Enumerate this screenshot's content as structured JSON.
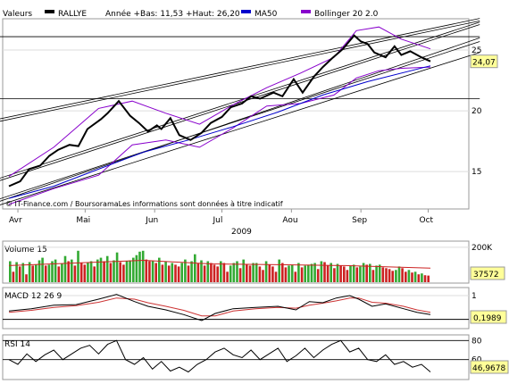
{
  "header": {
    "prefix": "Valeurs",
    "stock": "RALLYE",
    "year_range": "Année +Bas: 11,53 +Haut: 26,20",
    "ma_label": "MA50",
    "boll_label": "Bollinger 20 2.0"
  },
  "colors": {
    "price": "#000000",
    "ma50": "#0000cc",
    "bollinger": "#8800cc",
    "trendline": "#000000",
    "vol_up": "#33aa33",
    "vol_down": "#cc2222",
    "macd_signal": "#cc3333",
    "badge_bg": "#ffff99",
    "panel_border": "#999999"
  },
  "footer": {
    "copyright": "© IT-Finance.com / BoursoramaLes informations sont données à titre indicatif"
  },
  "chart_data": [
    {
      "type": "line",
      "name": "price",
      "ylim": [
        12,
        27.5
      ],
      "yticks": [
        {
          "v": 15,
          "label": "15"
        },
        {
          "v": 20,
          "label": "20"
        },
        {
          "v": 25,
          "label": "25"
        }
      ],
      "last_value_label": "24,07",
      "months": [
        "Avr",
        "Mai",
        "Jun",
        "Jul",
        "Aou",
        "Sep",
        "Oct"
      ],
      "year": "2009",
      "days": [
        0,
        5,
        9,
        14,
        18,
        22,
        27,
        31,
        35,
        41,
        44,
        49,
        54,
        58,
        62,
        66,
        68,
        72,
        76,
        81,
        86,
        90,
        95,
        99,
        104,
        108,
        112,
        118,
        122,
        127,
        131,
        136,
        140,
        144,
        149,
        154,
        157,
        160,
        163,
        168,
        172,
        175,
        179,
        184,
        188
      ],
      "values": [
        13.8,
        14.2,
        15.2,
        15.5,
        16.3,
        16.8,
        17.2,
        17.1,
        18.5,
        19.3,
        19.8,
        20.8,
        19.6,
        19.0,
        18.3,
        18.8,
        18.5,
        19.4,
        18.0,
        17.6,
        18.2,
        19.0,
        19.5,
        20.3,
        20.6,
        21.2,
        21.0,
        21.5,
        21.2,
        22.6,
        21.5,
        22.8,
        23.6,
        24.3,
        25.1,
        26.2,
        25.7,
        25.5,
        24.8,
        24.4,
        25.3,
        24.6,
        24.9,
        24.4,
        24.07
      ],
      "ma50": {
        "days": [
          0,
          20,
          40,
          60,
          80,
          100,
          120,
          140,
          160,
          188
        ],
        "values": [
          12.8,
          13.8,
          15.2,
          16.6,
          17.6,
          18.7,
          19.9,
          21.3,
          22.4,
          23.7
        ]
      },
      "bollinger_upper": {
        "days": [
          0,
          20,
          40,
          55,
          70,
          85,
          100,
          115,
          130,
          145,
          155,
          165,
          175,
          188
        ],
        "values": [
          14.6,
          17.0,
          20.2,
          20.8,
          19.8,
          18.9,
          20.5,
          21.9,
          23.1,
          24.4,
          26.6,
          26.9,
          25.9,
          25.1
        ],
        "lower": [
          12.3,
          13.6,
          14.7,
          17.2,
          17.6,
          17.0,
          18.6,
          20.4,
          20.6,
          21.3,
          22.7,
          23.3,
          23.5,
          23.6
        ]
      },
      "trendlines": [
        {
          "d1": -5,
          "v1": 14.4,
          "d2": 210,
          "v2": 27.3
        },
        {
          "d1": -5,
          "v1": 14.2,
          "d2": 210,
          "v2": 27.1
        },
        {
          "d1": -5,
          "v1": 19.3,
          "d2": 210,
          "v2": 27.6
        },
        {
          "d1": -5,
          "v1": 19.1,
          "d2": 210,
          "v2": 27.4
        },
        {
          "d1": -5,
          "v1": 12.2,
          "d2": 210,
          "v2": 24.8
        },
        {
          "d1": -5,
          "v1": 12.7,
          "d2": 210,
          "v2": 25.7
        },
        {
          "d1": -5,
          "v1": 12.5,
          "d2": 210,
          "v2": 26.0
        },
        {
          "d1": -5,
          "v1": 21.0,
          "d2": 210,
          "v2": 21.0
        },
        {
          "d1": -5,
          "v1": 26.1,
          "d2": 210,
          "v2": 26.1
        }
      ]
    },
    {
      "type": "bar",
      "name": "volume",
      "title": "Volume 15",
      "ylim": [
        0,
        230000
      ],
      "yticks": [
        {
          "v": 200000,
          "label": "200K"
        }
      ],
      "last_value_label": "37572",
      "values": [
        120000,
        60000,
        115000,
        90000,
        110000,
        45000,
        115000,
        95000,
        100000,
        125000,
        140000,
        95000,
        100000,
        120000,
        130000,
        90000,
        105000,
        150000,
        120000,
        130000,
        95000,
        180000,
        110000,
        100000,
        115000,
        120000,
        90000,
        130000,
        140000,
        120000,
        150000,
        110000,
        125000,
        170000,
        115000,
        100000,
        120000,
        125000,
        140000,
        155000,
        175000,
        180000,
        130000,
        120000,
        120000,
        110000,
        140000,
        100000,
        120000,
        95000,
        110000,
        100000,
        90000,
        110000,
        130000,
        95000,
        120000,
        160000,
        110000,
        125000,
        95000,
        120000,
        110000,
        100000,
        90000,
        120000,
        110000,
        60000,
        95000,
        110000,
        120000,
        80000,
        130000,
        105000,
        95000,
        110000,
        110000,
        90000,
        70000,
        120000,
        100000,
        90000,
        60000,
        130000,
        110000,
        85000,
        95000,
        100000,
        60000,
        110000,
        85000,
        95000,
        100000,
        105000,
        110000,
        75000,
        120000,
        115000,
        95000,
        110000,
        80000,
        105000,
        95000,
        90000,
        70000,
        95000,
        100000,
        85000,
        90000,
        110000,
        100000,
        105000,
        70000,
        95000,
        100000,
        85000,
        80000,
        75000,
        65000,
        70000,
        90000,
        80000,
        60000,
        70000,
        55000,
        60000,
        45000,
        50000,
        40000,
        37572
      ],
      "ma_days": [
        0,
        30,
        60,
        90,
        120,
        150,
        188
      ],
      "ma_values": [
        95000,
        110000,
        125000,
        105000,
        100000,
        95000,
        80000
      ]
    },
    {
      "type": "line",
      "name": "macd",
      "title": "MACD 12 26 9",
      "ylim": [
        -0.35,
        1.3
      ],
      "yticks": [
        {
          "v": 1,
          "label": "1"
        },
        {
          "v": 0,
          "label": "0"
        }
      ],
      "last_value_label": "0,1989",
      "days": [
        0,
        10,
        20,
        30,
        40,
        48,
        56,
        62,
        70,
        78,
        86,
        92,
        100,
        110,
        120,
        128,
        134,
        140,
        146,
        152,
        156,
        162,
        168,
        176,
        182,
        188
      ],
      "values": [
        0.35,
        0.45,
        0.6,
        0.62,
        0.85,
        1.05,
        0.75,
        0.55,
        0.4,
        0.2,
        -0.05,
        0.25,
        0.45,
        0.5,
        0.55,
        0.4,
        0.75,
        0.7,
        0.9,
        1.0,
        0.85,
        0.55,
        0.65,
        0.45,
        0.3,
        0.2
      ],
      "signal": [
        0.3,
        0.38,
        0.5,
        0.58,
        0.72,
        0.9,
        0.85,
        0.7,
        0.55,
        0.38,
        0.15,
        0.15,
        0.35,
        0.45,
        0.5,
        0.47,
        0.6,
        0.68,
        0.78,
        0.9,
        0.9,
        0.72,
        0.68,
        0.55,
        0.4,
        0.3
      ]
    },
    {
      "type": "line",
      "name": "rsi",
      "title": "RSI 14",
      "ylim": [
        40,
        85
      ],
      "yticks": [
        {
          "v": 80,
          "label": "80"
        },
        {
          "v": 60,
          "label": "60"
        }
      ],
      "last_value_label": "46,9678",
      "days": [
        0,
        4,
        8,
        12,
        16,
        20,
        24,
        28,
        32,
        36,
        40,
        44,
        48,
        52,
        56,
        60,
        64,
        68,
        72,
        76,
        80,
        84,
        88,
        92,
        96,
        100,
        104,
        108,
        112,
        116,
        120,
        124,
        128,
        132,
        136,
        140,
        144,
        148,
        152,
        156,
        160,
        164,
        168,
        172,
        176,
        180,
        184,
        188
      ],
      "values": [
        60,
        55,
        66,
        58,
        65,
        70,
        60,
        66,
        72,
        75,
        66,
        76,
        80,
        60,
        55,
        62,
        50,
        58,
        48,
        52,
        47,
        55,
        60,
        68,
        72,
        65,
        62,
        70,
        60,
        66,
        72,
        58,
        64,
        72,
        62,
        70,
        76,
        80,
        68,
        72,
        60,
        58,
        65,
        55,
        58,
        52,
        55,
        47
      ]
    }
  ]
}
